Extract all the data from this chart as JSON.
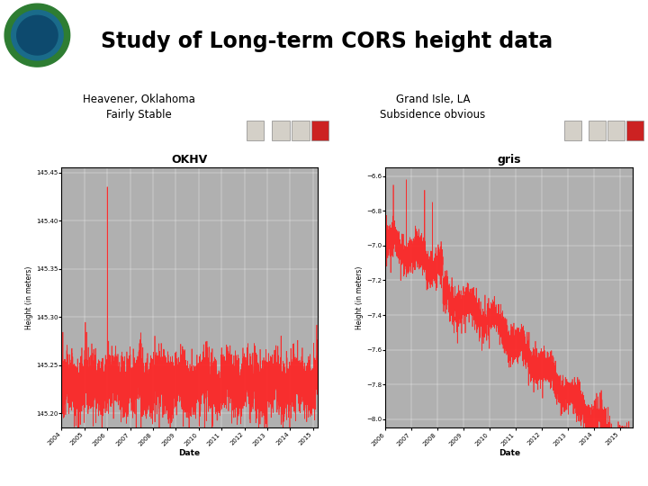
{
  "title": "Study of Long-term CORS height data",
  "left_label1": "Heavener, Oklahoma",
  "left_label2": "Fairly Stable",
  "right_label1": "Grand Isle, LA",
  "right_label2": "Subsidence obvious",
  "left_chart_title": "OKHV",
  "right_chart_title": "gris",
  "left_xlabel": "Date",
  "right_xlabel": "Date",
  "left_ylabel": "Height (in meters)",
  "right_ylabel": "Height (in meters)",
  "left_ylim": [
    145.185,
    145.455
  ],
  "right_ylim": [
    -8.05,
    -6.55
  ],
  "bg_color": "#ffffff",
  "header_cyan": "#00b4d8",
  "header_navy": "#00205b",
  "plot_bg": "#b0b0b0",
  "win_bg": "#ece9d8",
  "win_titlebar": "#0a246a",
  "win_titlebar2": "#a6b5d7",
  "line_color": "#ff2020",
  "grid_color": "#d0d0d0",
  "font_color": "#000000"
}
